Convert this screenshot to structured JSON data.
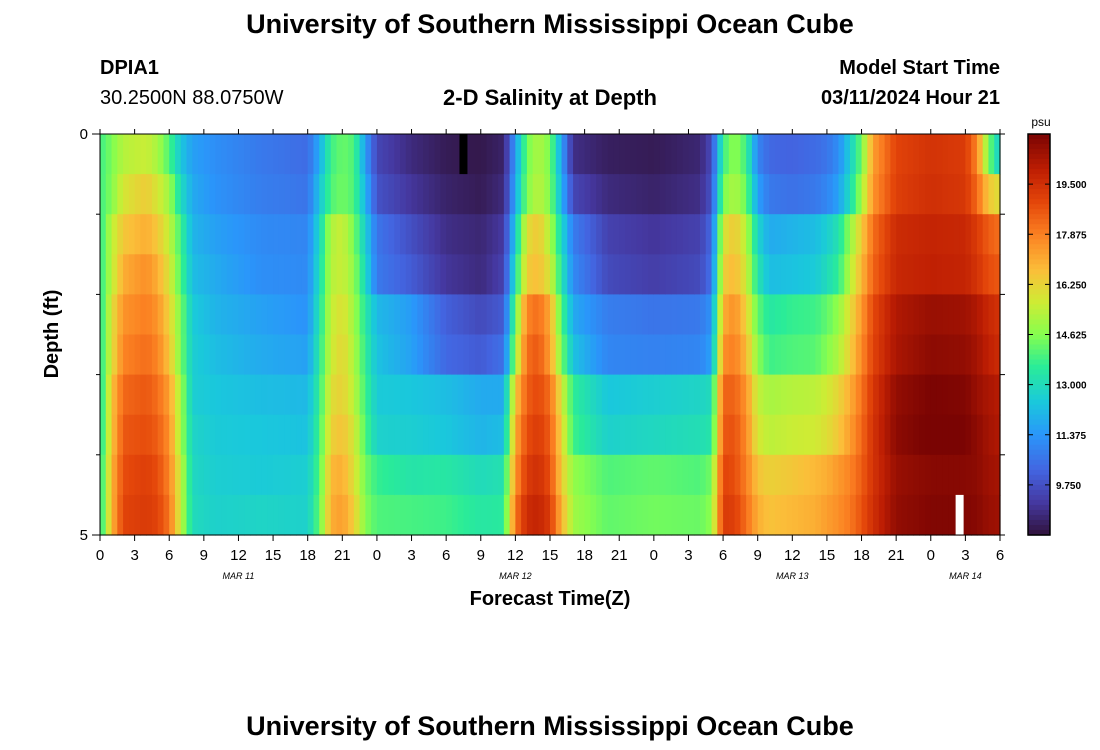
{
  "page": {
    "title_top": "University of Southern Mississippi Ocean Cube",
    "title_bottom": "University of Southern Mississippi Ocean Cube",
    "station_id": "DPIA1",
    "station_coords": "30.2500N  88.0750W",
    "model_label": "Model Start Time",
    "model_time": "03/11/2024 Hour 21"
  },
  "chart_data": {
    "type": "heatmap",
    "title": "2-D Salinity at Depth",
    "xlabel": "Forecast Time(Z)",
    "ylabel": "Depth (ft)",
    "colorbar_unit": "psu",
    "colorbar_ticks": [
      "19.500",
      "17.875",
      "16.250",
      "14.625",
      "13.000",
      "11.375",
      "9.750"
    ],
    "colorbar_range": [
      8.125,
      21.125
    ],
    "x_range_hours": [
      0,
      78
    ],
    "x_tick_labels": [
      "0",
      "3",
      "6",
      "9",
      "12",
      "15",
      "18",
      "21",
      "0",
      "3",
      "6",
      "9",
      "12",
      "15",
      "18",
      "21",
      "0",
      "3",
      "6",
      "9",
      "12",
      "15",
      "18",
      "21",
      "0",
      "3",
      "6"
    ],
    "date_labels": [
      {
        "text": "MAR 11",
        "hour": 12
      },
      {
        "text": "MAR 12",
        "hour": 36
      },
      {
        "text": "MAR 13",
        "hour": 60
      },
      {
        "text": "MAR 14",
        "hour": 75
      }
    ],
    "y_range_ft": [
      0,
      5
    ],
    "y_tick_labels": [
      "0",
      "5"
    ],
    "depth_levels_ft": [
      0.25,
      0.75,
      1.25,
      1.75,
      2.25,
      2.75,
      3.25,
      3.75,
      4.25,
      4.75
    ],
    "keyframes": [
      {
        "hour": 0,
        "values": [
          13.8,
          13.8,
          13.5,
          13.5,
          13.3,
          13.3,
          13.0,
          13.0,
          13.2,
          13.2
        ]
      },
      {
        "hour": 1,
        "values": [
          14.5,
          14.6,
          15.4,
          15.4,
          15.9,
          15.9,
          16.5,
          16.5,
          16.8,
          16.8
        ]
      },
      {
        "hour": 2,
        "values": [
          15.3,
          15.8,
          16.5,
          17.0,
          17.5,
          17.8,
          18.3,
          18.6,
          18.8,
          19.0
        ]
      },
      {
        "hour": 4,
        "values": [
          15.6,
          16.4,
          17.0,
          17.6,
          17.9,
          18.2,
          18.6,
          18.8,
          19.1,
          19.2
        ]
      },
      {
        "hour": 5,
        "values": [
          15.1,
          15.8,
          16.5,
          17.0,
          17.5,
          17.8,
          18.2,
          18.5,
          18.8,
          19.0
        ]
      },
      {
        "hour": 6,
        "values": [
          14.0,
          15.0,
          15.5,
          15.9,
          16.3,
          16.6,
          17.3,
          17.6,
          17.8,
          18.1
        ]
      },
      {
        "hour": 7,
        "values": [
          12.4,
          13.0,
          13.8,
          14.0,
          14.5,
          14.5,
          15.0,
          15.0,
          15.5,
          15.5
        ]
      },
      {
        "hour": 8,
        "values": [
          11.6,
          11.8,
          12.0,
          12.2,
          12.5,
          12.6,
          12.6,
          12.8,
          12.9,
          13.0
        ]
      },
      {
        "hour": 10,
        "values": [
          11.2,
          11.3,
          11.6,
          11.8,
          12.0,
          12.2,
          12.4,
          12.5,
          12.6,
          12.7
        ]
      },
      {
        "hour": 14,
        "values": [
          10.7,
          10.8,
          11.1,
          11.2,
          11.6,
          11.8,
          12.2,
          12.4,
          12.5,
          12.8
        ]
      },
      {
        "hour": 18,
        "values": [
          10.4,
          10.6,
          11.0,
          11.1,
          11.3,
          11.6,
          12.1,
          12.3,
          12.6,
          12.7
        ]
      },
      {
        "hour": 19,
        "values": [
          11.8,
          12.3,
          12.8,
          13.0,
          13.2,
          13.4,
          13.6,
          13.8,
          14.0,
          14.2
        ]
      },
      {
        "hour": 20,
        "values": [
          13.8,
          14.0,
          15.2,
          15.3,
          15.5,
          15.6,
          16.0,
          16.3,
          16.8,
          17.0
        ]
      },
      {
        "hour": 21,
        "values": [
          14.3,
          14.4,
          15.6,
          15.6,
          16.0,
          16.2,
          16.3,
          16.6,
          17.0,
          17.3
        ]
      },
      {
        "hour": 22,
        "values": [
          14.0,
          14.0,
          14.5,
          14.8,
          15.0,
          15.2,
          15.4,
          15.8,
          16.0,
          16.4
        ]
      },
      {
        "hour": 23,
        "values": [
          11.5,
          12.0,
          12.6,
          12.9,
          13.4,
          13.6,
          13.8,
          14.0,
          14.4,
          14.6
        ]
      },
      {
        "hour": 24,
        "values": [
          9.5,
          9.8,
          10.6,
          10.7,
          12.1,
          12.3,
          12.5,
          12.7,
          13.7,
          14.0
        ]
      },
      {
        "hour": 27,
        "values": [
          8.8,
          9.1,
          9.7,
          10.0,
          11.5,
          11.6,
          12.4,
          12.6,
          13.3,
          13.9
        ]
      },
      {
        "hour": 30,
        "values": [
          8.4,
          8.6,
          8.9,
          9.1,
          10.1,
          10.3,
          12.2,
          12.4,
          13.4,
          13.8
        ]
      },
      {
        "hour": 33,
        "values": [
          8.3,
          8.4,
          8.7,
          8.8,
          9.6,
          10.0,
          11.8,
          12.0,
          13.0,
          13.4
        ]
      },
      {
        "hour": 35,
        "values": [
          8.6,
          8.8,
          9.2,
          9.4,
          10.0,
          10.5,
          11.8,
          12.2,
          13.2,
          13.5
        ]
      },
      {
        "hour": 36,
        "values": [
          11.5,
          11.8,
          12.6,
          13.2,
          14.3,
          15.0,
          16.5,
          17.1,
          17.5,
          18.1
        ]
      },
      {
        "hour": 37,
        "values": [
          14.4,
          14.6,
          16.0,
          16.4,
          17.8,
          18.2,
          18.5,
          18.8,
          19.2,
          19.6
        ]
      },
      {
        "hour": 38,
        "values": [
          15.2,
          15.4,
          16.5,
          16.7,
          18.2,
          18.6,
          18.9,
          19.2,
          19.5,
          19.8
        ]
      },
      {
        "hour": 39,
        "values": [
          14.5,
          14.6,
          15.2,
          15.8,
          17.1,
          17.3,
          18.2,
          18.5,
          18.8,
          19.2
        ]
      },
      {
        "hour": 40,
        "values": [
          11.6,
          12.0,
          12.9,
          13.3,
          14.0,
          14.5,
          15.8,
          16.2,
          16.4,
          16.9
        ]
      },
      {
        "hour": 41,
        "values": [
          8.9,
          9.5,
          10.8,
          11.1,
          11.8,
          12.3,
          13.6,
          13.8,
          14.8,
          15.0
        ]
      },
      {
        "hour": 44,
        "values": [
          8.5,
          8.8,
          9.4,
          9.6,
          10.8,
          11.0,
          12.4,
          12.7,
          14.0,
          14.2
        ]
      },
      {
        "hour": 48,
        "values": [
          8.4,
          8.6,
          9.1,
          9.3,
          10.6,
          10.9,
          12.6,
          12.9,
          14.2,
          14.4
        ]
      },
      {
        "hour": 52,
        "values": [
          8.7,
          8.9,
          9.4,
          9.6,
          10.7,
          11.0,
          12.8,
          13.1,
          14.0,
          14.3
        ]
      },
      {
        "hour": 53,
        "values": [
          9.6,
          9.8,
          10.3,
          10.5,
          11.3,
          11.6,
          13.0,
          13.3,
          14.4,
          14.7
        ]
      },
      {
        "hour": 54,
        "values": [
          13.8,
          14.5,
          15.8,
          16.3,
          17.0,
          17.6,
          18.4,
          18.6,
          19.0,
          19.2
        ]
      },
      {
        "hour": 55,
        "values": [
          14.8,
          15.2,
          16.5,
          16.8,
          17.6,
          17.9,
          18.4,
          18.7,
          18.8,
          19.1
        ]
      },
      {
        "hour": 56,
        "values": [
          13.8,
          14.3,
          15.3,
          15.7,
          16.3,
          16.8,
          17.5,
          17.7,
          17.9,
          18.2
        ]
      },
      {
        "hour": 57,
        "values": [
          11.0,
          11.6,
          12.8,
          13.3,
          14.2,
          14.7,
          15.5,
          15.8,
          16.6,
          17.0
        ]
      },
      {
        "hour": 58,
        "values": [
          10.3,
          10.7,
          11.8,
          12.2,
          13.4,
          13.8,
          15.1,
          15.4,
          16.3,
          16.6
        ]
      },
      {
        "hour": 60,
        "values": [
          10.2,
          10.5,
          12.0,
          12.3,
          13.7,
          14.0,
          15.3,
          15.6,
          16.5,
          16.8
        ]
      },
      {
        "hour": 62,
        "values": [
          10.4,
          10.7,
          12.2,
          12.5,
          13.8,
          14.1,
          15.4,
          15.7,
          16.8,
          17.0
        ]
      },
      {
        "hour": 63,
        "values": [
          10.6,
          11.0,
          12.6,
          13.0,
          14.2,
          14.6,
          15.7,
          16.0,
          17.0,
          17.3
        ]
      },
      {
        "hour": 64,
        "values": [
          11.2,
          11.6,
          13.2,
          13.6,
          14.8,
          15.2,
          16.2,
          16.5,
          17.4,
          17.6
        ]
      },
      {
        "hour": 65,
        "values": [
          12.6,
          13.0,
          14.8,
          15.3,
          16.0,
          16.3,
          17.0,
          17.3,
          17.8,
          18.0
        ]
      },
      {
        "hour": 66,
        "values": [
          14.4,
          15.0,
          16.4,
          16.8,
          17.4,
          17.7,
          18.1,
          18.3,
          18.5,
          18.7
        ]
      },
      {
        "hour": 67,
        "values": [
          17.3,
          17.5,
          18.2,
          18.4,
          18.9,
          19.0,
          19.3,
          19.4,
          19.4,
          19.5
        ]
      },
      {
        "hour": 69,
        "values": [
          19.0,
          19.1,
          19.6,
          19.7,
          20.2,
          20.3,
          20.7,
          20.8,
          20.6,
          20.7
        ]
      },
      {
        "hour": 72,
        "values": [
          19.4,
          19.5,
          19.8,
          19.9,
          20.6,
          20.8,
          21.1,
          21.2,
          20.9,
          21.0
        ]
      },
      {
        "hour": 75,
        "values": [
          19.2,
          19.3,
          19.7,
          19.8,
          20.5,
          20.7,
          21.0,
          21.1,
          20.9,
          21.0
        ]
      },
      {
        "hour": 76,
        "values": [
          17.8,
          18.3,
          19.2,
          19.4,
          20.2,
          20.4,
          20.6,
          20.8,
          20.8,
          20.9
        ]
      },
      {
        "hour": 77,
        "values": [
          14.5,
          16.5,
          18.5,
          18.8,
          19.7,
          19.9,
          20.3,
          20.4,
          20.5,
          20.6
        ]
      },
      {
        "hour": 78,
        "values": [
          12.5,
          16.0,
          18.2,
          18.6,
          19.4,
          19.6,
          20.1,
          20.2,
          20.4,
          20.5
        ]
      }
    ],
    "annotations": [
      {
        "type": "missing-mark",
        "color": "#000000",
        "hour": 31.5,
        "depth_ft": [
          0,
          0.5
        ]
      },
      {
        "type": "missing-mark",
        "color": "#ffffff",
        "hour": 74.5,
        "depth_ft": [
          4.5,
          5
        ]
      }
    ]
  }
}
